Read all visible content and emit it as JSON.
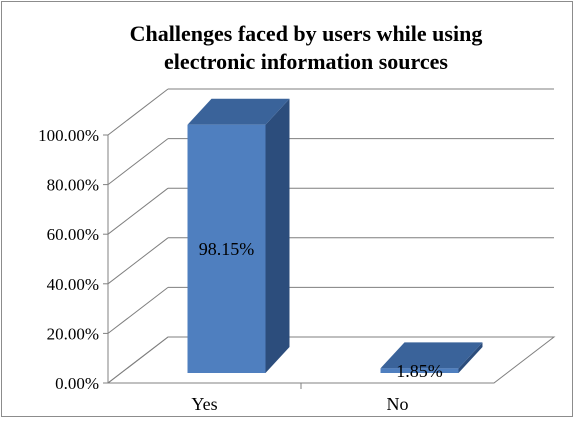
{
  "chart_data": {
    "type": "bar",
    "title_lines": [
      "Challenges faced by users while using",
      "electronic information sources"
    ],
    "categories": [
      "Yes",
      "No"
    ],
    "values": [
      98.15,
      1.85
    ],
    "data_labels": [
      "98.15%",
      "1.85%"
    ],
    "y_ticks": [
      "0.00%",
      "20.00%",
      "40.00%",
      "60.00%",
      "80.00%",
      "100.00%"
    ],
    "ylim": [
      0,
      100
    ],
    "grid": true,
    "legend": "none",
    "style": "3d-column",
    "colors": {
      "bar_front": "#4f7fbf",
      "bar_side": "#2c4d7c",
      "bar_top": "#3a639a",
      "grid": "#7f7f7f",
      "axis": "#808080",
      "text": "#000000"
    }
  }
}
